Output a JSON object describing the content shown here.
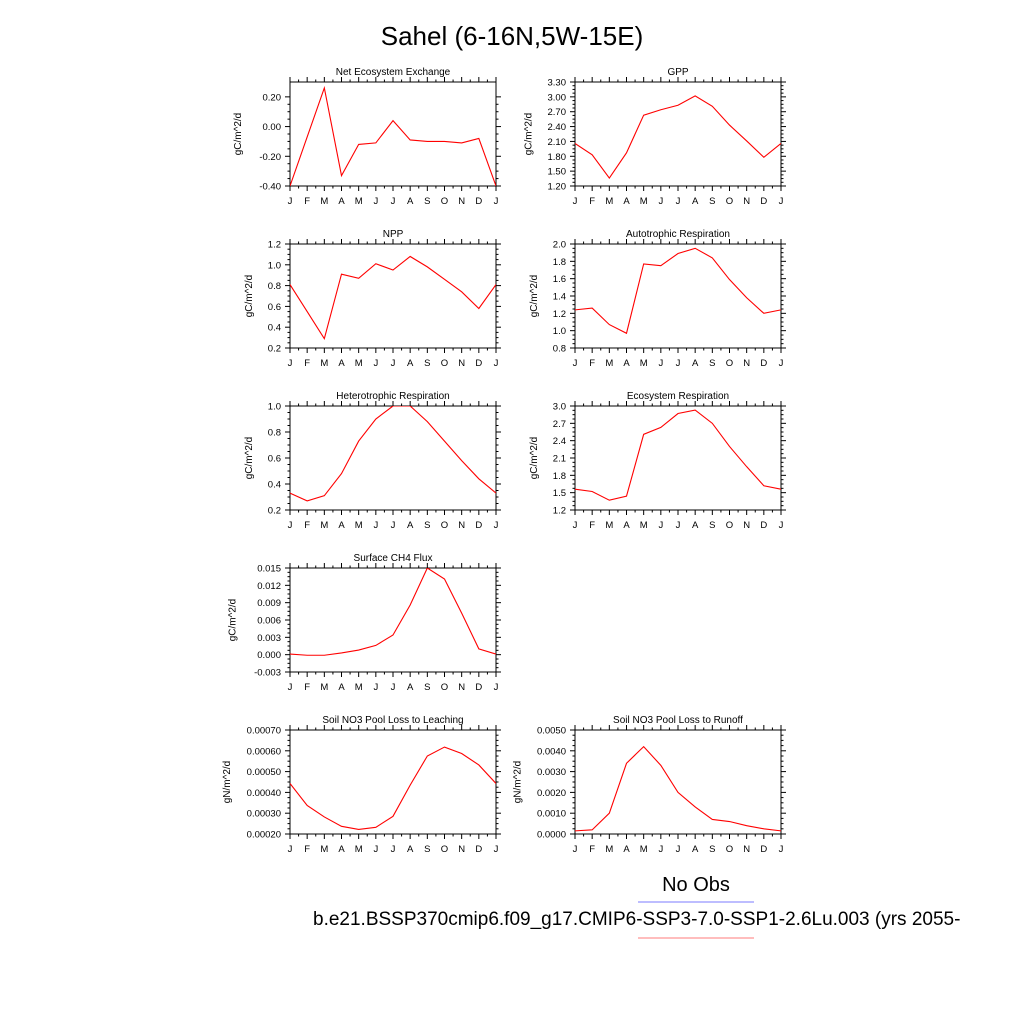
{
  "figure": {
    "title": "Sahel (6-16N,5W-15E)",
    "legend": {
      "obs_label": "No Obs",
      "model_label": "b.e21.BSSP370cmip6.f09_g17.CMIP6-SSP3-7.0-SSP1-2.6Lu.003 (yrs 2055-",
      "obs_color": "#7b7bff",
      "model_color": "#ff7b7b"
    },
    "line_color": "#ff0000"
  },
  "chart_data": [
    {
      "type": "line",
      "title": "Net Ecosystem Exchange",
      "ylabel": "gC/m^2/d",
      "x": [
        "J",
        "F",
        "M",
        "A",
        "M",
        "J",
        "J",
        "A",
        "S",
        "O",
        "N",
        "D",
        "J"
      ],
      "values": [
        -0.4,
        -0.07,
        0.26,
        -0.33,
        -0.12,
        -0.11,
        0.04,
        -0.09,
        -0.1,
        -0.1,
        -0.11,
        -0.08,
        -0.4
      ],
      "ylim": [
        -0.4,
        0.3
      ],
      "yticks": [
        "-0.40",
        "-0.20",
        "0.00",
        "0.20"
      ],
      "ytick_values": [
        -0.4,
        -0.2,
        0.0,
        0.2
      ]
    },
    {
      "type": "line",
      "title": "GPP",
      "ylabel": "gC/m^2/d",
      "x": [
        "J",
        "F",
        "M",
        "A",
        "M",
        "J",
        "J",
        "A",
        "S",
        "O",
        "N",
        "D",
        "J"
      ],
      "values": [
        2.06,
        1.83,
        1.36,
        1.87,
        2.63,
        2.74,
        2.83,
        3.02,
        2.81,
        2.43,
        2.11,
        1.78,
        2.06
      ],
      "ylim": [
        1.2,
        3.3
      ],
      "yticks": [
        "1.20",
        "1.50",
        "1.80",
        "2.10",
        "2.40",
        "2.70",
        "3.00",
        "3.30"
      ],
      "ytick_values": [
        1.2,
        1.5,
        1.8,
        2.1,
        2.4,
        2.7,
        3.0,
        3.3
      ]
    },
    {
      "type": "line",
      "title": "NPP",
      "ylabel": "gC/m^2/d",
      "x": [
        "J",
        "F",
        "M",
        "A",
        "M",
        "J",
        "J",
        "A",
        "S",
        "O",
        "N",
        "D",
        "J"
      ],
      "values": [
        0.81,
        0.55,
        0.29,
        0.91,
        0.87,
        1.01,
        0.95,
        1.08,
        0.98,
        0.86,
        0.74,
        0.58,
        0.81
      ],
      "ylim": [
        0.2,
        1.2
      ],
      "yticks": [
        "0.2",
        "0.4",
        "0.6",
        "0.8",
        "1.0",
        "1.2"
      ],
      "ytick_values": [
        0.2,
        0.4,
        0.6,
        0.8,
        1.0,
        1.2
      ]
    },
    {
      "type": "line",
      "title": "Autotrophic Respiration",
      "ylabel": "gC/m^2/d",
      "x": [
        "J",
        "F",
        "M",
        "A",
        "M",
        "J",
        "J",
        "A",
        "S",
        "O",
        "N",
        "D",
        "J"
      ],
      "values": [
        1.24,
        1.26,
        1.07,
        0.97,
        1.77,
        1.75,
        1.89,
        1.95,
        1.84,
        1.59,
        1.38,
        1.2,
        1.24
      ],
      "ylim": [
        0.8,
        2.0
      ],
      "yticks": [
        "0.8",
        "1.0",
        "1.2",
        "1.4",
        "1.6",
        "1.8",
        "2.0"
      ],
      "ytick_values": [
        0.8,
        1.0,
        1.2,
        1.4,
        1.6,
        1.8,
        2.0
      ]
    },
    {
      "type": "line",
      "title": "Heterotrophic Respiration",
      "ylabel": "gC/m^2/d",
      "x": [
        "J",
        "F",
        "M",
        "A",
        "M",
        "J",
        "J",
        "A",
        "S",
        "O",
        "N",
        "D",
        "J"
      ],
      "values": [
        0.33,
        0.27,
        0.31,
        0.48,
        0.73,
        0.9,
        1.0,
        1.0,
        0.88,
        0.73,
        0.58,
        0.44,
        0.33
      ],
      "ylim": [
        0.2,
        1.0
      ],
      "yticks": [
        "0.2",
        "0.4",
        "0.6",
        "0.8",
        "1.0"
      ],
      "ytick_values": [
        0.2,
        0.4,
        0.6,
        0.8,
        1.0
      ]
    },
    {
      "type": "line",
      "title": "Ecosystem Respiration",
      "ylabel": "gC/m^2/d",
      "x": [
        "J",
        "F",
        "M",
        "A",
        "M",
        "J",
        "J",
        "A",
        "S",
        "O",
        "N",
        "D",
        "J"
      ],
      "values": [
        1.56,
        1.52,
        1.37,
        1.44,
        2.51,
        2.63,
        2.87,
        2.93,
        2.7,
        2.3,
        1.95,
        1.62,
        1.56
      ],
      "ylim": [
        1.2,
        3.0
      ],
      "yticks": [
        "1.2",
        "1.5",
        "1.8",
        "2.1",
        "2.4",
        "2.7",
        "3.0"
      ],
      "ytick_values": [
        1.2,
        1.5,
        1.8,
        2.1,
        2.4,
        2.7,
        3.0
      ]
    },
    {
      "type": "line",
      "title": "Surface CH4 Flux",
      "ylabel": "gC/m^2/d",
      "x": [
        "J",
        "F",
        "M",
        "A",
        "M",
        "J",
        "J",
        "A",
        "S",
        "O",
        "N",
        "D",
        "J"
      ],
      "values": [
        0.0001,
        -0.0001,
        -0.0001,
        0.0003,
        0.0008,
        0.0016,
        0.0034,
        0.0086,
        0.015,
        0.0131,
        0.0072,
        0.001,
        0.0001
      ],
      "ylim": [
        -0.003,
        0.015
      ],
      "yticks": [
        "-0.003",
        "0.000",
        "0.003",
        "0.006",
        "0.009",
        "0.012",
        "0.015"
      ],
      "ytick_values": [
        -0.003,
        0.0,
        0.003,
        0.006,
        0.009,
        0.012,
        0.015
      ]
    },
    {
      "type": "line",
      "title": "Soil NO3 Pool Loss to Leaching",
      "ylabel": "gN/m^2/d",
      "x": [
        "J",
        "F",
        "M",
        "A",
        "M",
        "J",
        "J",
        "A",
        "S",
        "O",
        "N",
        "D",
        "J"
      ],
      "values": [
        0.000443,
        0.000337,
        0.000282,
        0.000237,
        0.000222,
        0.000232,
        0.000285,
        0.000435,
        0.000575,
        0.000618,
        0.000587,
        0.000532,
        0.000443
      ],
      "ylim": [
        0.0002,
        0.0007
      ],
      "yticks": [
        "0.00020",
        "0.00030",
        "0.00040",
        "0.00050",
        "0.00060",
        "0.00070"
      ],
      "ytick_values": [
        0.0002,
        0.0003,
        0.0004,
        0.0005,
        0.0006,
        0.0007
      ]
    },
    {
      "type": "line",
      "title": "Soil NO3 Pool Loss to Runoff",
      "ylabel": "gN/m^2/d",
      "x": [
        "J",
        "F",
        "M",
        "A",
        "M",
        "J",
        "J",
        "A",
        "S",
        "O",
        "N",
        "D",
        "J"
      ],
      "values": [
        0.00015,
        0.0002,
        0.001,
        0.0034,
        0.0042,
        0.0033,
        0.002,
        0.0013,
        0.0007,
        0.0006,
        0.0004,
        0.00025,
        0.00015
      ],
      "ylim": [
        0.0,
        0.005
      ],
      "yticks": [
        "0.0000",
        "0.0010",
        "0.0020",
        "0.0030",
        "0.0040",
        "0.0050"
      ],
      "ytick_values": [
        0.0,
        0.001,
        0.002,
        0.003,
        0.004,
        0.005
      ]
    }
  ]
}
